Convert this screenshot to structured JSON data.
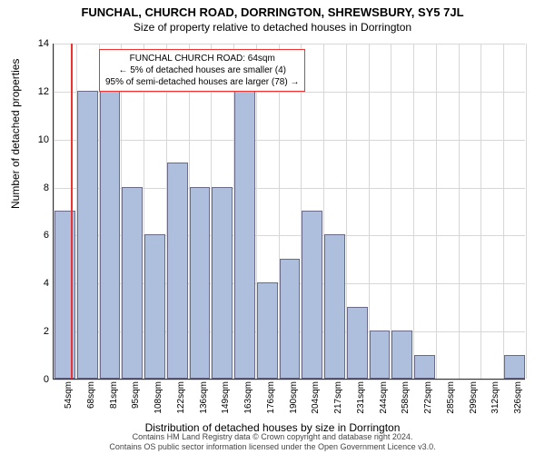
{
  "title_main": "FUNCHAL, CHURCH ROAD, DORRINGTON, SHREWSBURY, SY5 7JL",
  "title_sub": "Size of property relative to detached houses in Dorrington",
  "ylabel": "Number of detached properties",
  "xlabel": "Distribution of detached houses by size in Dorrington",
  "footer1": "Contains HM Land Registry data © Crown copyright and database right 2024.",
  "footer2": "Contains OS public sector information licensed under the Open Government Licence v3.0.",
  "chart": {
    "type": "histogram",
    "ylim": [
      0,
      14
    ],
    "ytick_step": 2,
    "yticks": [
      0,
      2,
      4,
      6,
      8,
      10,
      12,
      14
    ],
    "xlabels": [
      "54sqm",
      "68sqm",
      "81sqm",
      "95sqm",
      "108sqm",
      "122sqm",
      "136sqm",
      "149sqm",
      "163sqm",
      "176sqm",
      "190sqm",
      "204sqm",
      "217sqm",
      "231sqm",
      "244sqm",
      "258sqm",
      "272sqm",
      "285sqm",
      "299sqm",
      "312sqm",
      "326sqm"
    ],
    "values": [
      7,
      12,
      12,
      8,
      6,
      9,
      8,
      8,
      12,
      4,
      5,
      7,
      6,
      3,
      2,
      2,
      1,
      0,
      0,
      0,
      1
    ],
    "bar_color": "#aebfde",
    "bar_border": "#6a6a8a",
    "grid_color": "#d7d7d7",
    "background": "#ffffff",
    "marker": {
      "position_index": 0.75,
      "color": "#ee3333",
      "box_border": "#ee3333",
      "box_bg": "#ffffff",
      "line1": "FUNCHAL CHURCH ROAD: 64sqm",
      "line2": "← 5% of detached houses are smaller (4)",
      "line3": "95% of semi-detached houses are larger (78) →"
    }
  }
}
